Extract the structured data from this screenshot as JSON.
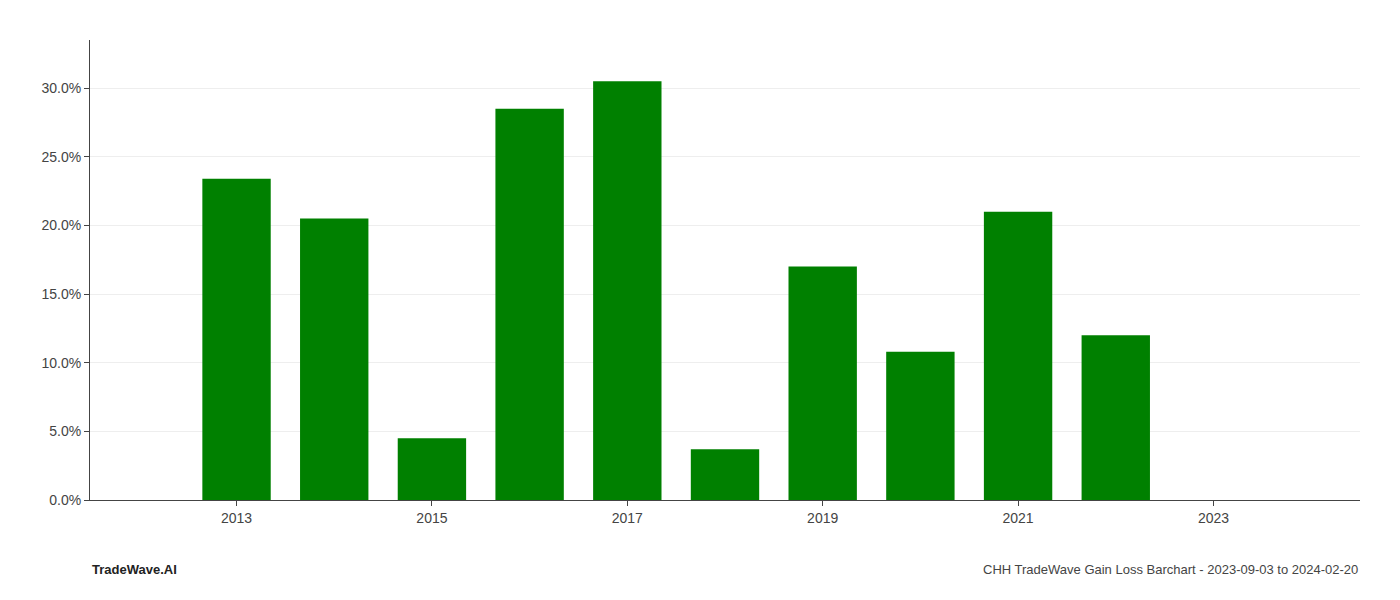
{
  "chart_data": {
    "type": "bar",
    "x": [
      2013,
      2014,
      2015,
      2016,
      2017,
      2018,
      2019,
      2020,
      2021,
      2022
    ],
    "values": [
      0.234,
      0.205,
      0.045,
      0.285,
      0.305,
      0.037,
      0.17,
      0.108,
      0.21,
      0.12
    ],
    "color": "#008000",
    "xlim": [
      2011.5,
      2024.5
    ],
    "xticks": [
      2013,
      2015,
      2017,
      2019,
      2021,
      2023
    ],
    "ylim": [
      0.0,
      0.335
    ],
    "yticks": [
      {
        "value": 0.0,
        "label": "0.0%"
      },
      {
        "value": 0.05,
        "label": "5.0%"
      },
      {
        "value": 0.1,
        "label": "10.0%"
      },
      {
        "value": 0.15,
        "label": "15.0%"
      },
      {
        "value": 0.2,
        "label": "20.0%"
      },
      {
        "value": 0.25,
        "label": "25.0%"
      },
      {
        "value": 0.3,
        "label": "30.0%"
      }
    ],
    "grid": "y",
    "annotations": [
      "TradeWave.AI",
      "CHH TradeWave Gain Loss Barchart - 2023-09-03 to 2024-02-20"
    ]
  }
}
